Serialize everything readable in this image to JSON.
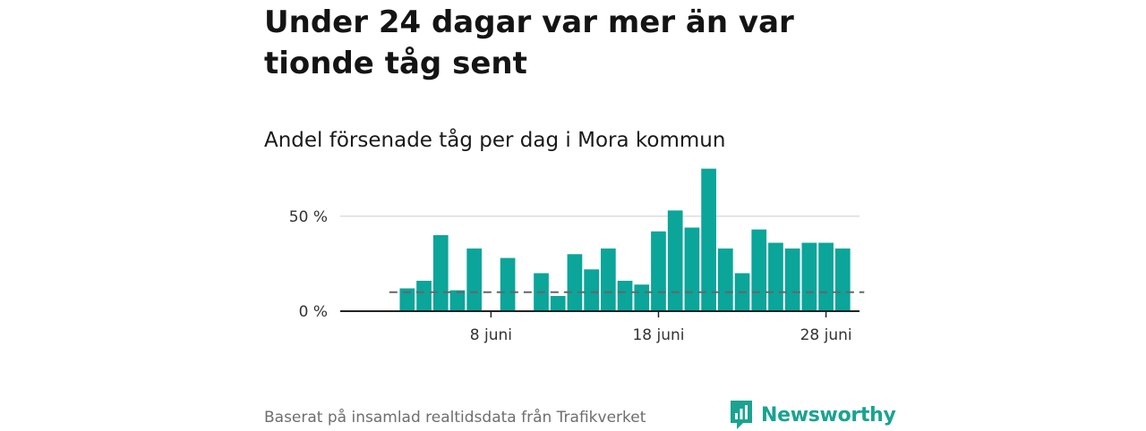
{
  "headline": "Under 24 dagar var mer än var tionde tåg sent",
  "subtitle": "Andel försenade tåg per dag i Mora kommun",
  "source": "Baserat på insamlad realtidsdata från Trafikverket",
  "brand": {
    "name": "Newsworthy",
    "icon": "newsworthy-logo-icon"
  },
  "colors": {
    "bar": "#0ba59a",
    "reference_line": "#666666",
    "grid": "#dddddd",
    "axis": "#222222",
    "brand": "#1aa391"
  },
  "chart_data": {
    "type": "bar",
    "x_unit": "juni",
    "x": [
      3,
      4,
      5,
      6,
      7,
      9,
      11,
      12,
      13,
      14,
      15,
      16,
      17,
      18,
      19,
      20,
      21,
      22,
      23,
      24,
      25,
      26,
      27,
      28,
      29
    ],
    "values": [
      12,
      16,
      40,
      11,
      33,
      28,
      20,
      8,
      30,
      22,
      33,
      16,
      14,
      42,
      53,
      44,
      75,
      33,
      20,
      43,
      36,
      33,
      36,
      36,
      33
    ],
    "reference_line": 10,
    "xlim": [
      -1,
      30
    ],
    "ylim": [
      0,
      80
    ],
    "y_ticks": [
      {
        "value": 0,
        "label": "0 %"
      },
      {
        "value": 50,
        "label": "50 %"
      }
    ],
    "x_ticks": [
      {
        "value": 8,
        "label": "8 juni"
      },
      {
        "value": 18,
        "label": "18 juni"
      },
      {
        "value": 28,
        "label": "28 juni"
      }
    ],
    "grid": true
  }
}
